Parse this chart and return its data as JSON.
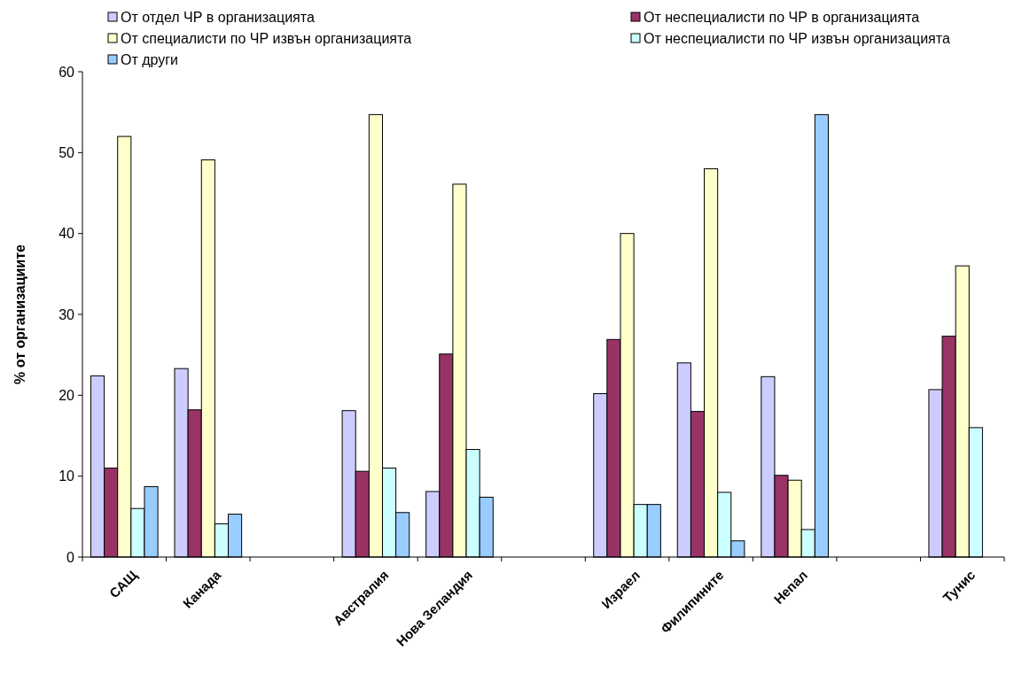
{
  "chart_data": {
    "type": "bar",
    "ylabel": "% от организациите",
    "categories": [
      "САЩ",
      "Канада",
      null,
      "Австралия",
      "Нова Зеландия",
      null,
      "Израел",
      "Филипините",
      "Непал",
      null,
      "Тунис"
    ],
    "series": [
      {
        "name": "От отдел ЧР в организацията",
        "color": "#ccccff",
        "values": [
          22.4,
          23.3,
          null,
          18.1,
          8.1,
          null,
          20.2,
          24,
          22.3,
          null,
          20.7
        ]
      },
      {
        "name": "От неспециалисти по ЧР в организацията",
        "color": "#993366",
        "values": [
          11,
          18.2,
          null,
          10.6,
          25.1,
          null,
          26.9,
          18,
          10.1,
          null,
          27.3
        ]
      },
      {
        "name": "От специалисти по ЧР извън организацията",
        "color": "#ffffcc",
        "values": [
          52,
          49.1,
          null,
          54.7,
          46.1,
          null,
          40,
          48,
          9.5,
          null,
          36
        ]
      },
      {
        "name": "От неспециалисти по ЧР извън организацията",
        "color": "#ccffff",
        "values": [
          6,
          4.1,
          null,
          11,
          13.3,
          null,
          6.5,
          8,
          3.4,
          null,
          16
        ]
      },
      {
        "name": "От други",
        "color": "#99ccff",
        "values": [
          8.7,
          5.3,
          null,
          5.5,
          7.4,
          null,
          6.5,
          2,
          54.7,
          null,
          null
        ]
      }
    ],
    "ylim": [
      0,
      60
    ],
    "yticks": [
      0,
      10,
      20,
      30,
      40,
      50,
      60
    ],
    "grid": false,
    "legend": "top"
  }
}
